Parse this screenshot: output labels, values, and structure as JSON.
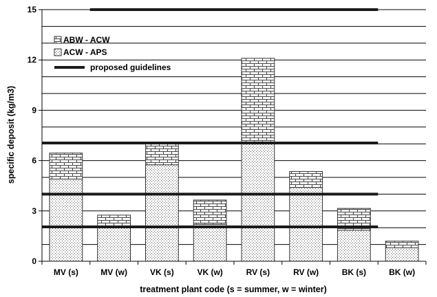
{
  "chart_data": {
    "type": "bar",
    "stacked": true,
    "categories": [
      "MV (s)",
      "MV (w)",
      "VK (s)",
      "VK (w)",
      "RV (s)",
      "RV (w)",
      "BK (s)",
      "BK (w)"
    ],
    "series": [
      {
        "name": "ACW - APS",
        "pattern": "dots",
        "values": [
          4.9,
          2.0,
          5.75,
          2.2,
          7.0,
          4.4,
          1.85,
          0.8
        ]
      },
      {
        "name": "ABW - ACW",
        "pattern": "bricks",
        "values": [
          1.55,
          0.75,
          1.25,
          1.45,
          5.1,
          0.95,
          1.3,
          0.4
        ]
      }
    ],
    "proposed_guidelines": {
      "name": "proposed guidelines",
      "segments": [
        {
          "value": 15,
          "from": "MV (w)",
          "to": "BK (s)"
        },
        {
          "value": 7.05,
          "from": "MV (s)",
          "to": "BK (s)"
        },
        {
          "value": 4.0,
          "from": "MV (s)",
          "to": "BK (s)"
        },
        {
          "value": 2.05,
          "from": "MV (s)",
          "to": "BK (s)"
        }
      ]
    },
    "xlabel": "treatment plant code (s = summer, w = winter)",
    "ylabel": "specific deposit (kg/m3)",
    "ylim": [
      0,
      15
    ],
    "yticks": [
      0,
      3,
      6,
      9,
      12,
      15
    ],
    "gridline_step": 1,
    "grid": true,
    "legend_placement": "top-left",
    "colors": {
      "guideline": "#1a1a1a",
      "bar_border": "#333333",
      "pattern_ink": "#444444",
      "background": "#ffffff"
    }
  }
}
